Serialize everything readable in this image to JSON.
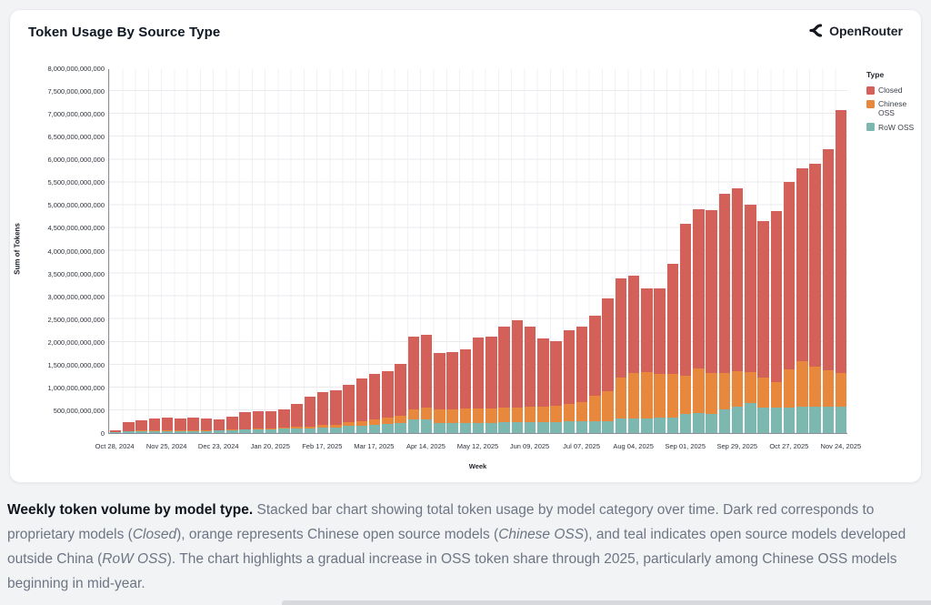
{
  "header": {
    "title": "Token Usage By Source Type",
    "brand": "OpenRouter"
  },
  "chart_data": {
    "type": "bar",
    "stacked": true,
    "title": "Token Usage By Source Type",
    "xlabel": "Week",
    "ylabel": "Sum of Tokens",
    "ylim_tokens": [
      0,
      8000000000000
    ],
    "ytick_step_tokens": 500000000000,
    "grid": true,
    "legend_position": "right",
    "legend_title": "Type",
    "n_weeks": 57,
    "week_cadence": "weekly",
    "first_week": "Oct 28, 2024",
    "last_week": "Nov 24, 2025",
    "x_tick_labels": [
      "Oct 28, 2024",
      "Nov 25, 2024",
      "Dec 23, 2024",
      "Jan 20, 2025",
      "Feb 17, 2025",
      "Mar 17, 2025",
      "Apr 14, 2025",
      "May 12, 2025",
      "Jun 09, 2025",
      "Jul 07, 2025",
      "Aug 04, 2025",
      "Sep 01, 2025",
      "Sep 29, 2025",
      "Oct 27, 2025",
      "Nov 24, 2025"
    ],
    "x_tick_every_n_weeks": 4,
    "values_unit": "billions of tokens",
    "stack_order_bottom_to_top": [
      "RoW OSS",
      "Chinese OSS",
      "Closed"
    ],
    "series": [
      {
        "name": "Closed",
        "color": "#d4605a",
        "values": [
          40,
          180,
          225,
          265,
          285,
          265,
          285,
          260,
          235,
          275,
          370,
          385,
          375,
          380,
          500,
          640,
          715,
          740,
          815,
          935,
          1010,
          1025,
          1125,
          1590,
          1610,
          1240,
          1250,
          1310,
          1550,
          1575,
          1770,
          1915,
          1750,
          1495,
          1425,
          1620,
          1645,
          1770,
          2025,
          2170,
          2130,
          1845,
          1880,
          2410,
          3330,
          3480,
          3570,
          3930,
          4020,
          3665,
          3430,
          3740,
          4120,
          4225,
          4450,
          4840,
          5775
        ]
      },
      {
        "name": "Chinese OSS",
        "color": "#e8883c",
        "values": [
          5,
          10,
          10,
          10,
          10,
          10,
          10,
          10,
          10,
          15,
          15,
          20,
          20,
          35,
          40,
          45,
          65,
          70,
          95,
          100,
          105,
          145,
          165,
          230,
          250,
          310,
          310,
          315,
          320,
          320,
          330,
          330,
          340,
          345,
          350,
          380,
          430,
          550,
          660,
          900,
          1000,
          1010,
          970,
          960,
          830,
          990,
          900,
          800,
          765,
          695,
          660,
          560,
          830,
          1000,
          890,
          810,
          730
        ]
      },
      {
        "name": "RoW OSS",
        "color": "#7cb7b0",
        "values": [
          15,
          40,
          45,
          45,
          50,
          50,
          50,
          50,
          55,
          70,
          75,
          75,
          75,
          95,
          100,
          105,
          120,
          120,
          150,
          155,
          185,
          190,
          220,
          290,
          300,
          210,
          210,
          215,
          220,
          225,
          230,
          235,
          240,
          240,
          245,
          250,
          255,
          260,
          265,
          320,
          320,
          325,
          330,
          340,
          420,
          430,
          420,
          520,
          585,
          650,
          560,
          560,
          560,
          585,
          570,
          570,
          585
        ]
      }
    ]
  },
  "caption": {
    "segments": [
      {
        "text": "Weekly token volume by model type. ",
        "style": "bold"
      },
      {
        "text": "Stacked bar chart showing total token usage by model category over time. Dark red corresponds to proprietary models (",
        "style": "normal"
      },
      {
        "text": "Closed",
        "style": "italic"
      },
      {
        "text": "), orange represents Chinese open source models (",
        "style": "normal"
      },
      {
        "text": "Chinese OSS",
        "style": "italic"
      },
      {
        "text": "), and teal indicates open source models developed outside China (",
        "style": "normal"
      },
      {
        "text": "RoW OSS",
        "style": "italic"
      },
      {
        "text": "). The chart highlights a gradual increase in OSS token share through 2025, particularly among Chinese OSS models beginning in mid-year.",
        "style": "normal"
      }
    ]
  }
}
